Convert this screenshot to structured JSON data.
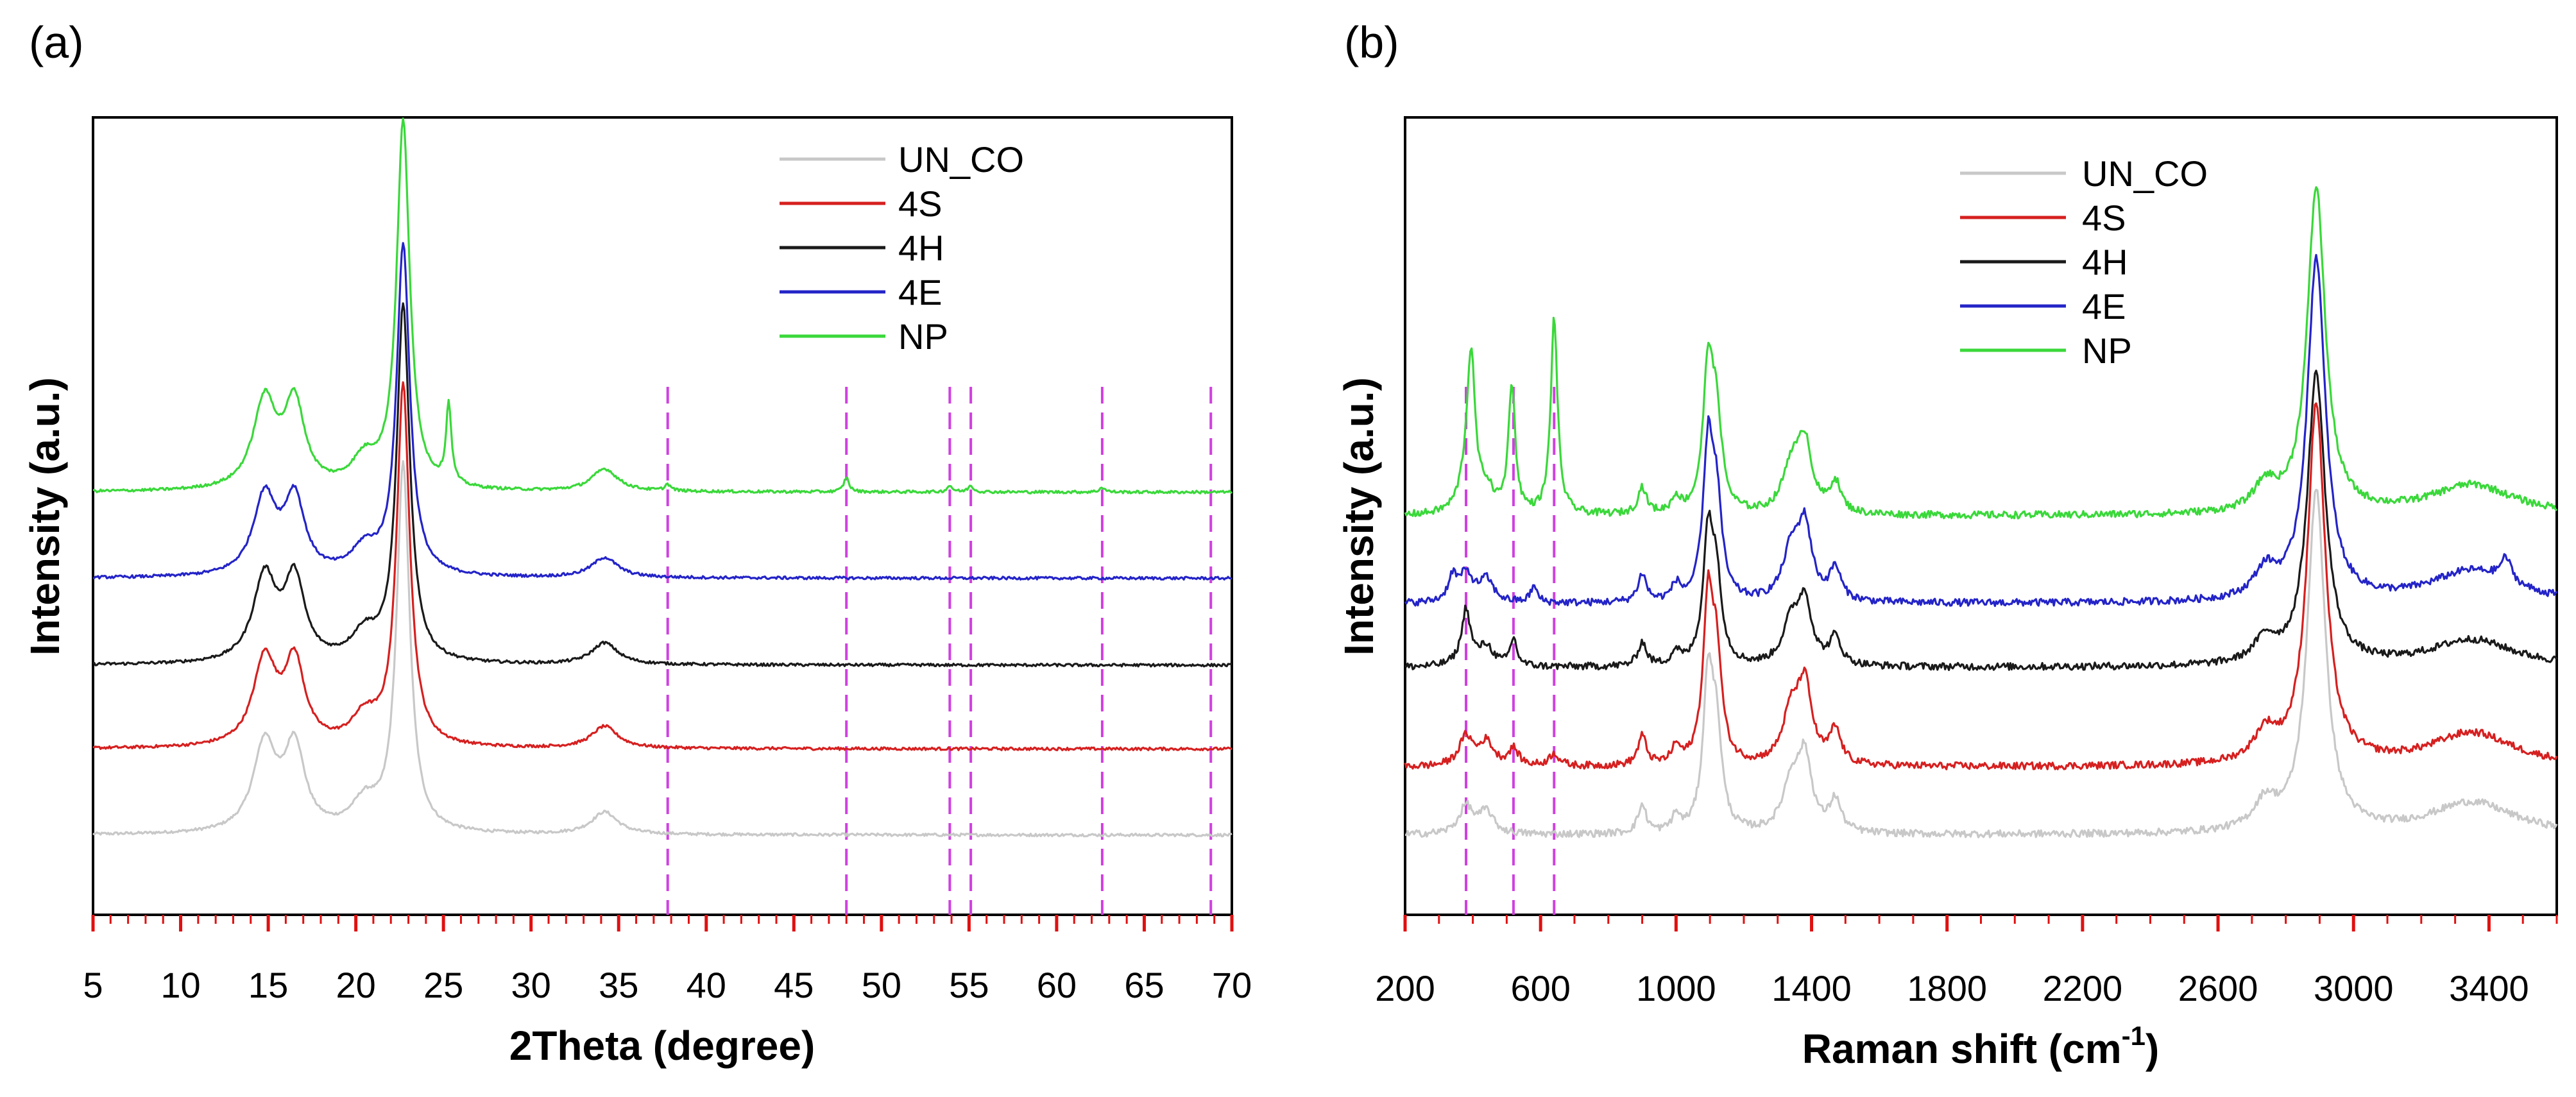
{
  "colors": {
    "UN_CO": "#c8c8c8",
    "4S": "#d62020",
    "4H": "#1a1a1a",
    "4E": "#2424c8",
    "NP": "#3ad83a",
    "marker": "#d040e0",
    "tick": "#e01010"
  },
  "chart_data": [
    {
      "panel": "(a)",
      "type": "line",
      "xlabel": "2Theta (degree)",
      "ylabel": "Intensity (a.u.)",
      "xlim": [
        5,
        70
      ],
      "xticks": [
        "5",
        "10",
        "15",
        "20",
        "25",
        "30",
        "35",
        "40",
        "45",
        "50",
        "55",
        "60",
        "65",
        "70"
      ],
      "legend_position": "top-right",
      "legend": [
        "UN_CO",
        "4S",
        "4H",
        "4E",
        "NP"
      ],
      "ylim": [
        0,
        10
      ],
      "marker_lines": [
        37.8,
        48.0,
        53.9,
        55.1,
        62.6,
        68.8
      ],
      "peaks_common": [
        {
          "x": 14.8,
          "h": 1.1,
          "w": 0.8
        },
        {
          "x": 16.5,
          "h": 1.05,
          "w": 0.7
        },
        {
          "x": 20.5,
          "h": 0.35,
          "w": 0.9
        },
        {
          "x": 22.7,
          "h": 4.6,
          "w": 0.45
        },
        {
          "x": 34.2,
          "h": 0.28,
          "w": 0.9
        }
      ],
      "series": [
        {
          "name": "UN_CO",
          "offset": 1.0,
          "scale": 1.0,
          "extra_peaks": []
        },
        {
          "name": "4S",
          "offset": 2.08,
          "scale": 0.98,
          "extra_peaks": []
        },
        {
          "name": "4H",
          "offset": 3.13,
          "scale": 0.97,
          "extra_peaks": []
        },
        {
          "name": "4E",
          "offset": 4.22,
          "scale": 0.9,
          "extra_peaks": []
        },
        {
          "name": "NP",
          "offset": 5.3,
          "scale": 1.0,
          "extra_peaks": [
            {
              "x": 25.3,
              "h": 1.0,
              "w": 0.18
            },
            {
              "x": 37.8,
              "h": 0.08,
              "w": 0.2
            },
            {
              "x": 48.0,
              "h": 0.18,
              "w": 0.18
            },
            {
              "x": 53.9,
              "h": 0.08,
              "w": 0.18
            },
            {
              "x": 55.1,
              "h": 0.08,
              "w": 0.18
            },
            {
              "x": 62.6,
              "h": 0.06,
              "w": 0.18
            }
          ]
        }
      ]
    },
    {
      "panel": "(b)",
      "type": "line",
      "xlabel": "Raman shift (cm",
      "xlabel_sup": "-1",
      "xlabel_end": ")",
      "ylabel": "Intensity (a.u.)",
      "xlim": [
        200,
        3600
      ],
      "xticks": [
        "200",
        "600",
        "1000",
        "1400",
        "1800",
        "2200",
        "2600",
        "3000",
        "3400"
      ],
      "legend_position": "top-center",
      "legend": [
        "UN_CO",
        "4S",
        "4H",
        "4E",
        "NP"
      ],
      "ylim": [
        0,
        10
      ],
      "marker_lines": [
        380,
        520,
        640
      ],
      "peaks_common": [
        {
          "x": 380,
          "h": 0.35,
          "w": 25
        },
        {
          "x": 440,
          "h": 0.28,
          "w": 25
        },
        {
          "x": 900,
          "h": 0.35,
          "w": 15
        },
        {
          "x": 1000,
          "h": 0.2,
          "w": 15
        },
        {
          "x": 1095,
          "h": 1.9,
          "w": 18
        },
        {
          "x": 1120,
          "h": 1.1,
          "w": 18
        },
        {
          "x": 1340,
          "h": 0.6,
          "w": 30
        },
        {
          "x": 1380,
          "h": 0.9,
          "w": 25
        },
        {
          "x": 1470,
          "h": 0.4,
          "w": 20
        },
        {
          "x": 2890,
          "h": 4.3,
          "w": 32
        },
        {
          "x": 2740,
          "h": 0.35,
          "w": 40
        },
        {
          "x": 3350,
          "h": 0.4,
          "w": 150
        }
      ],
      "series": [
        {
          "name": "UN_CO",
          "offset": 1.0,
          "scale": 1.0,
          "extra_peaks": []
        },
        {
          "name": "4S",
          "offset": 1.85,
          "scale": 1.05,
          "extra_peaks": [
            {
              "x": 520,
              "h": 0.2,
              "w": 18
            },
            {
              "x": 640,
              "h": 0.15,
              "w": 18
            }
          ]
        },
        {
          "name": "4H",
          "offset": 3.1,
          "scale": 0.85,
          "extra_peaks": [
            {
              "x": 380,
              "h": 0.5,
              "w": 12
            },
            {
              "x": 520,
              "h": 0.4,
              "w": 12
            }
          ]
        },
        {
          "name": "4E",
          "offset": 3.9,
          "scale": 1.0,
          "extra_peaks": [
            {
              "x": 340,
              "h": 0.3,
              "w": 15
            },
            {
              "x": 580,
              "h": 0.2,
              "w": 12
            },
            {
              "x": 3450,
              "h": 0.3,
              "w": 20
            }
          ]
        },
        {
          "name": "NP",
          "offset": 5.0,
          "scale": 0.95,
          "extra_peaks": [
            {
              "x": 395,
              "h": 1.9,
              "w": 14
            },
            {
              "x": 515,
              "h": 1.7,
              "w": 12
            },
            {
              "x": 640,
              "h": 2.6,
              "w": 12
            }
          ]
        }
      ]
    }
  ]
}
